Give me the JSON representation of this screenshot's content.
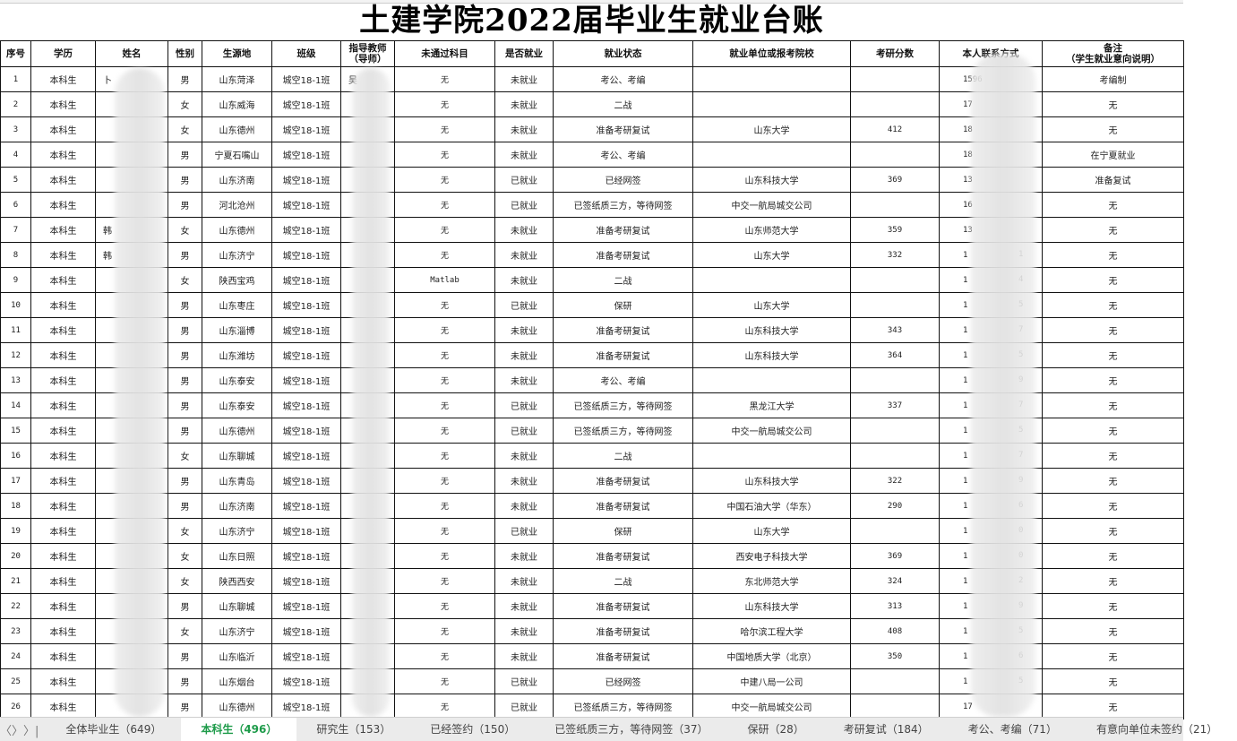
{
  "title": "土建学院2022届毕业生就业台账",
  "headers": [
    "序号",
    "学历",
    "姓名",
    "性别",
    "生源地",
    "班级",
    "指导教师\n（导师）",
    "未通过科目",
    "是否就业",
    "就业状态",
    "就业单位或报考院校",
    "考研分数",
    "本人联系方式",
    "备注\n（学生就业意向说明）"
  ],
  "rows": [
    {
      "no": "1",
      "edu": "本科生",
      "name": "卜",
      "sex": "男",
      "origin": "山东菏泽",
      "cls": "城空18-1班",
      "teacher": "吴",
      "fail": "无",
      "emp": "未就业",
      "status": "考公、考编",
      "unit": "",
      "score": "",
      "cp": "1596",
      "cs": "",
      "note": "考编制"
    },
    {
      "no": "2",
      "edu": "本科生",
      "name": "",
      "sex": "女",
      "origin": "山东威海",
      "cls": "城空18-1班",
      "teacher": "",
      "fail": "无",
      "emp": "未就业",
      "status": "二战",
      "unit": "",
      "score": "",
      "cp": "17",
      "cs": "",
      "note": "无"
    },
    {
      "no": "3",
      "edu": "本科生",
      "name": "",
      "sex": "女",
      "origin": "山东德州",
      "cls": "城空18-1班",
      "teacher": "",
      "fail": "无",
      "emp": "未就业",
      "status": "准备考研复试",
      "unit": "山东大学",
      "score": "412",
      "cp": "18",
      "cs": "",
      "note": "无"
    },
    {
      "no": "4",
      "edu": "本科生",
      "name": "",
      "sex": "男",
      "origin": "宁夏石嘴山",
      "cls": "城空18-1班",
      "teacher": "",
      "fail": "无",
      "emp": "未就业",
      "status": "考公、考编",
      "unit": "",
      "score": "",
      "cp": "18",
      "cs": "",
      "note": "在宁夏就业"
    },
    {
      "no": "5",
      "edu": "本科生",
      "name": "",
      "sex": "男",
      "origin": "山东济南",
      "cls": "城空18-1班",
      "teacher": "",
      "fail": "无",
      "emp": "已就业",
      "status": "已经网签",
      "unit": "山东科技大学",
      "score": "369",
      "cp": "13",
      "cs": "",
      "note": "准备复试"
    },
    {
      "no": "6",
      "edu": "本科生",
      "name": "",
      "sex": "男",
      "origin": "河北沧州",
      "cls": "城空18-1班",
      "teacher": "",
      "fail": "无",
      "emp": "已就业",
      "status": "已签纸质三方，等待网签",
      "unit": "中交一航局城交公司",
      "score": "",
      "cp": "16",
      "cs": "",
      "note": "无"
    },
    {
      "no": "7",
      "edu": "本科生",
      "name": "韩",
      "sex": "女",
      "origin": "山东德州",
      "cls": "城空18-1班",
      "teacher": "",
      "fail": "无",
      "emp": "未就业",
      "status": "准备考研复试",
      "unit": "山东师范大学",
      "score": "359",
      "cp": "13",
      "cs": "",
      "note": "无"
    },
    {
      "no": "8",
      "edu": "本科生",
      "name": "韩",
      "sex": "男",
      "origin": "山东济宁",
      "cls": "城空18-1班",
      "teacher": "",
      "fail": "无",
      "emp": "未就业",
      "status": "准备考研复试",
      "unit": "山东大学",
      "score": "332",
      "cp": "1",
      "cs": "1",
      "note": "无"
    },
    {
      "no": "9",
      "edu": "本科生",
      "name": "",
      "sex": "女",
      "origin": "陕西宝鸡",
      "cls": "城空18-1班",
      "teacher": "",
      "fail": "Matlab",
      "emp": "未就业",
      "status": "二战",
      "unit": "",
      "score": "",
      "cp": "1",
      "cs": "4",
      "note": "无"
    },
    {
      "no": "10",
      "edu": "本科生",
      "name": "",
      "sex": "男",
      "origin": "山东枣庄",
      "cls": "城空18-1班",
      "teacher": "",
      "fail": "无",
      "emp": "已就业",
      "status": "保研",
      "unit": "山东大学",
      "score": "",
      "cp": "1",
      "cs": "5",
      "note": "无"
    },
    {
      "no": "11",
      "edu": "本科生",
      "name": "",
      "sex": "男",
      "origin": "山东淄博",
      "cls": "城空18-1班",
      "teacher": "",
      "fail": "无",
      "emp": "未就业",
      "status": "准备考研复试",
      "unit": "山东科技大学",
      "score": "343",
      "cp": "1",
      "cs": "7",
      "note": "无"
    },
    {
      "no": "12",
      "edu": "本科生",
      "name": "",
      "sex": "男",
      "origin": "山东潍坊",
      "cls": "城空18-1班",
      "teacher": "",
      "fail": "无",
      "emp": "未就业",
      "status": "准备考研复试",
      "unit": "山东科技大学",
      "score": "364",
      "cp": "1",
      "cs": "5",
      "note": "无"
    },
    {
      "no": "13",
      "edu": "本科生",
      "name": "",
      "sex": "男",
      "origin": "山东泰安",
      "cls": "城空18-1班",
      "teacher": "",
      "fail": "无",
      "emp": "未就业",
      "status": "考公、考编",
      "unit": "",
      "score": "",
      "cp": "1",
      "cs": "9",
      "note": "无"
    },
    {
      "no": "14",
      "edu": "本科生",
      "name": "",
      "sex": "男",
      "origin": "山东泰安",
      "cls": "城空18-1班",
      "teacher": "",
      "fail": "无",
      "emp": "已就业",
      "status": "已签纸质三方，等待网签",
      "unit": "黑龙江大学",
      "score": "337",
      "cp": "1",
      "cs": "7",
      "note": "无"
    },
    {
      "no": "15",
      "edu": "本科生",
      "name": "",
      "sex": "男",
      "origin": "山东德州",
      "cls": "城空18-1班",
      "teacher": "",
      "fail": "无",
      "emp": "已就业",
      "status": "已签纸质三方，等待网签",
      "unit": "中交一航局城交公司",
      "score": "",
      "cp": "1",
      "cs": "5",
      "note": "无"
    },
    {
      "no": "16",
      "edu": "本科生",
      "name": "",
      "sex": "女",
      "origin": "山东聊城",
      "cls": "城空18-1班",
      "teacher": "",
      "fail": "无",
      "emp": "未就业",
      "status": "二战",
      "unit": "",
      "score": "",
      "cp": "1",
      "cs": "7",
      "note": "无"
    },
    {
      "no": "17",
      "edu": "本科生",
      "name": "",
      "sex": "男",
      "origin": "山东青岛",
      "cls": "城空18-1班",
      "teacher": "",
      "fail": "无",
      "emp": "未就业",
      "status": "准备考研复试",
      "unit": "山东科技大学",
      "score": "322",
      "cp": "1",
      "cs": "9",
      "note": "无"
    },
    {
      "no": "18",
      "edu": "本科生",
      "name": "",
      "sex": "男",
      "origin": "山东济南",
      "cls": "城空18-1班",
      "teacher": "",
      "fail": "无",
      "emp": "未就业",
      "status": "准备考研复试",
      "unit": "中国石油大学（华东）",
      "score": "290",
      "cp": "1",
      "cs": "6",
      "note": "无"
    },
    {
      "no": "19",
      "edu": "本科生",
      "name": "",
      "sex": "女",
      "origin": "山东济宁",
      "cls": "城空18-1班",
      "teacher": "",
      "fail": "无",
      "emp": "已就业",
      "status": "保研",
      "unit": "山东大学",
      "score": "",
      "cp": "1",
      "cs": "0",
      "note": "无"
    },
    {
      "no": "20",
      "edu": "本科生",
      "name": "",
      "sex": "女",
      "origin": "山东日照",
      "cls": "城空18-1班",
      "teacher": "",
      "fail": "无",
      "emp": "未就业",
      "status": "准备考研复试",
      "unit": "西安电子科技大学",
      "score": "369",
      "cp": "1",
      "cs": "0",
      "note": "无"
    },
    {
      "no": "21",
      "edu": "本科生",
      "name": "",
      "sex": "女",
      "origin": "陕西西安",
      "cls": "城空18-1班",
      "teacher": "",
      "fail": "无",
      "emp": "未就业",
      "status": "二战",
      "unit": "东北师范大学",
      "score": "324",
      "cp": "1",
      "cs": "2",
      "note": "无"
    },
    {
      "no": "22",
      "edu": "本科生",
      "name": "",
      "sex": "男",
      "origin": "山东聊城",
      "cls": "城空18-1班",
      "teacher": "",
      "fail": "无",
      "emp": "未就业",
      "status": "准备考研复试",
      "unit": "山东科技大学",
      "score": "313",
      "cp": "1",
      "cs": "9",
      "note": "无"
    },
    {
      "no": "23",
      "edu": "本科生",
      "name": "",
      "sex": "女",
      "origin": "山东济宁",
      "cls": "城空18-1班",
      "teacher": "",
      "fail": "无",
      "emp": "未就业",
      "status": "准备考研复试",
      "unit": "哈尔滨工程大学",
      "score": "408",
      "cp": "1",
      "cs": "5",
      "note": "无"
    },
    {
      "no": "24",
      "edu": "本科生",
      "name": "",
      "sex": "男",
      "origin": "山东临沂",
      "cls": "城空18-1班",
      "teacher": "",
      "fail": "无",
      "emp": "未就业",
      "status": "准备考研复试",
      "unit": "中国地质大学（北京）",
      "score": "350",
      "cp": "1",
      "cs": "6",
      "note": "无"
    },
    {
      "no": "25",
      "edu": "本科生",
      "name": "",
      "sex": "男",
      "origin": "山东烟台",
      "cls": "城空18-1班",
      "teacher": "",
      "fail": "无",
      "emp": "已就业",
      "status": "已经网签",
      "unit": "中建八局一公司",
      "score": "",
      "cp": "1",
      "cs": "5",
      "note": "无"
    },
    {
      "no": "26",
      "edu": "本科生",
      "name": "",
      "sex": "男",
      "origin": "山东德州",
      "cls": "城空18-1班",
      "teacher": "",
      "fail": "无",
      "emp": "已就业",
      "status": "已签纸质三方，等待网签",
      "unit": "中交一航局城交公司",
      "score": "",
      "cp": "17",
      "cs": "",
      "note": "无"
    }
  ],
  "sheet_nav": {
    "prev": "〈",
    "next": "〉",
    "last": "〉|"
  },
  "sheet_tabs": [
    {
      "label": "全体毕业生（649）",
      "active": false
    },
    {
      "label": "本科生（496）",
      "active": true
    },
    {
      "label": "研究生（153）",
      "active": false
    },
    {
      "label": "已经签约（150）",
      "active": false
    },
    {
      "label": "已签纸质三方，等待网签（37）",
      "active": false
    },
    {
      "label": "保研（28）",
      "active": false
    },
    {
      "label": "考研复试（184）",
      "active": false
    },
    {
      "label": "考公、考编（71）",
      "active": false
    },
    {
      "label": "有意向单位未签约（21）",
      "active": false
    }
  ],
  "colors": {
    "active_tab": "#1e9b4a",
    "tab_bar": "#ebebeb",
    "grid": "#111111"
  }
}
